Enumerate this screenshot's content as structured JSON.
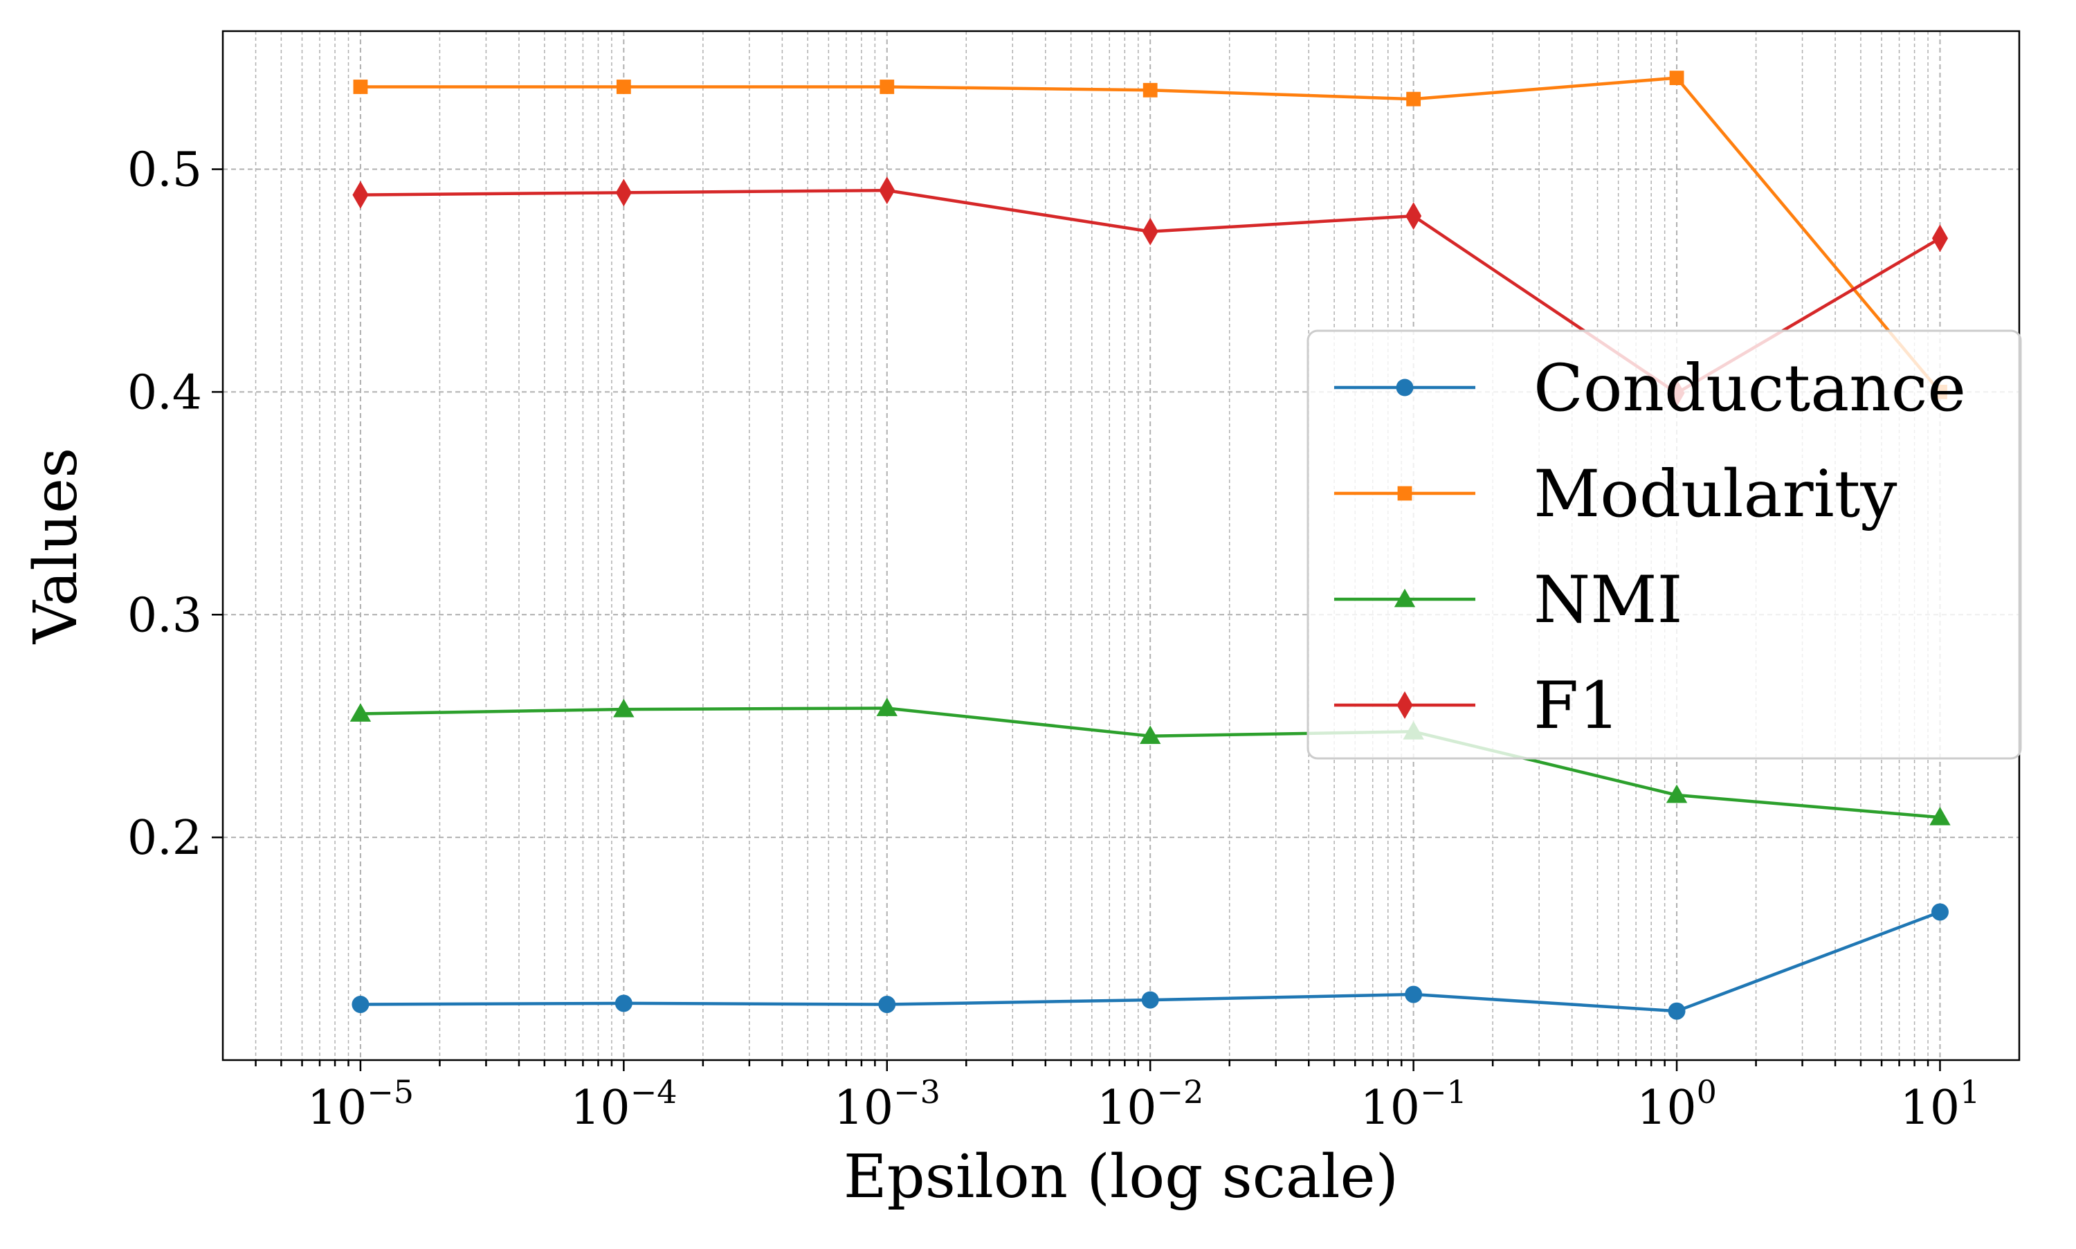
{
  "chart_data": {
    "type": "line",
    "title": "",
    "xlabel": "Epsilon (log scale)",
    "ylabel": "Values",
    "xscale": "log",
    "x": [
      1e-05,
      0.0001,
      0.001,
      0.01,
      0.1,
      1,
      10
    ],
    "xlim": [
      3e-06,
      20
    ],
    "ylim": [
      0.1,
      0.562
    ],
    "x_ticks": [
      {
        "base": "10",
        "exp": "−5",
        "value": 1e-05
      },
      {
        "base": "10",
        "exp": "−4",
        "value": 0.0001
      },
      {
        "base": "10",
        "exp": "−3",
        "value": 0.001
      },
      {
        "base": "10",
        "exp": "−2",
        "value": 0.01
      },
      {
        "base": "10",
        "exp": "−1",
        "value": 0.1
      },
      {
        "base": "10",
        "exp": "0",
        "value": 1
      },
      {
        "base": "10",
        "exp": "1",
        "value": 10
      }
    ],
    "y_ticks": [
      {
        "label": "0.2",
        "value": 0.2
      },
      {
        "label": "0.3",
        "value": 0.3
      },
      {
        "label": "0.4",
        "value": 0.4
      },
      {
        "label": "0.5",
        "value": 0.5
      }
    ],
    "grid": true,
    "legend_position": "center-right",
    "series": [
      {
        "name": "Conductance",
        "color": "#1f77b4",
        "marker": "circle",
        "values": [
          0.125,
          0.1255,
          0.125,
          0.127,
          0.1295,
          0.122,
          0.1665
        ]
      },
      {
        "name": "Modularity",
        "color": "#ff7f0e",
        "marker": "square",
        "values": [
          0.537,
          0.537,
          0.537,
          0.5355,
          0.5315,
          0.541,
          0.4
        ]
      },
      {
        "name": "NMI",
        "color": "#2ca02c",
        "marker": "triangle",
        "values": [
          0.2555,
          0.2575,
          0.258,
          0.2455,
          0.2475,
          0.219,
          0.209
        ]
      },
      {
        "name": "F1",
        "color": "#d62728",
        "marker": "diamond",
        "values": [
          0.4885,
          0.4895,
          0.4905,
          0.472,
          0.479,
          0.3995,
          0.469
        ]
      }
    ]
  }
}
